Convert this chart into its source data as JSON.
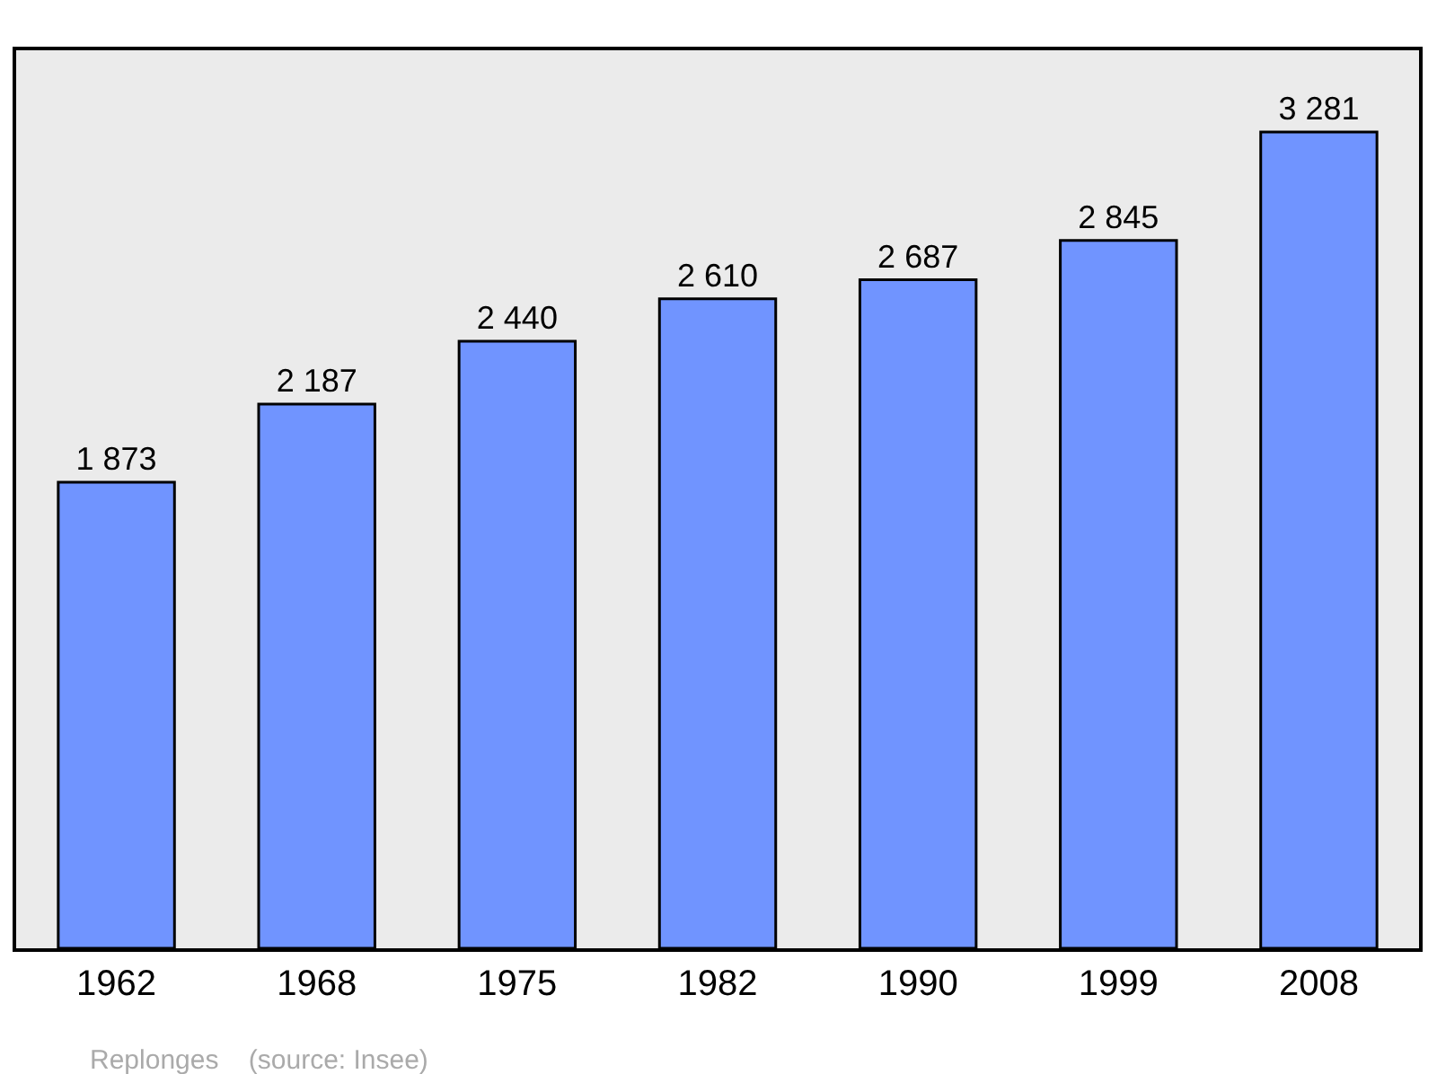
{
  "chart_data": {
    "type": "bar",
    "categories": [
      "1962",
      "1968",
      "1975",
      "1982",
      "1990",
      "1999",
      "2008"
    ],
    "values": [
      1873,
      2187,
      2440,
      2610,
      2687,
      2845,
      3281
    ],
    "value_labels": [
      "1 873",
      "2 187",
      "2 440",
      "2 610",
      "2 687",
      "2 845",
      "3 281"
    ],
    "color": "#7094ff",
    "annotations": [
      "Replonges    (source: Insee)"
    ]
  }
}
